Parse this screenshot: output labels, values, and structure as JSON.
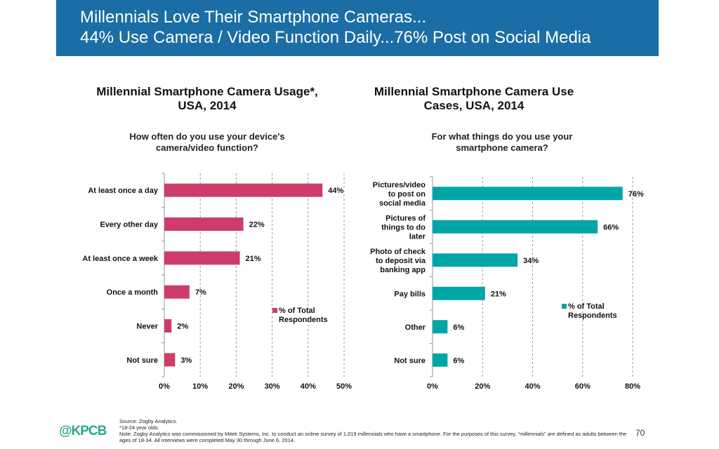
{
  "header": {
    "line1": "Millennials Love Their Smartphone Cameras...",
    "line2": "44% Use Camera / Video Function Daily...76% Post on Social Media"
  },
  "chart_data": [
    {
      "type": "bar",
      "orientation": "horizontal",
      "title": "Millennial Smartphone Camera Usage*, USA, 2014",
      "subtitle": "How often do you use your device's camera/video function?",
      "categories": [
        "At least once a day",
        "Every other day",
        "At least once a week",
        "Once a month",
        "Never",
        "Not sure"
      ],
      "series": [
        {
          "name": "% of Total Respondents",
          "values": [
            44,
            22,
            21,
            7,
            2,
            3
          ]
        }
      ],
      "data_labels": [
        "44%",
        "22%",
        "21%",
        "7%",
        "2%",
        "3%"
      ],
      "xlim": [
        0,
        50
      ],
      "xticks": [
        "0%",
        "10%",
        "20%",
        "30%",
        "40%",
        "50%"
      ],
      "grid": true,
      "legend": "lower-right",
      "color": "#cc3d6a"
    },
    {
      "type": "bar",
      "orientation": "horizontal",
      "title": "Millennial Smartphone Camera Use Cases, USA, 2014",
      "subtitle": "For what things do you use your smartphone camera?",
      "categories": [
        "Pictures/video to post on social media",
        "Pictures of things to do later",
        "Photo of check to deposit via banking app",
        "Pay bills",
        "Other",
        "Not sure"
      ],
      "series": [
        {
          "name": "% of Total Respondents",
          "values": [
            76,
            66,
            34,
            21,
            6,
            6
          ]
        }
      ],
      "data_labels": [
        "76%",
        "66%",
        "34%",
        "21%",
        "6%",
        "6%"
      ],
      "xlim": [
        0,
        80
      ],
      "xticks": [
        "0%",
        "20%",
        "40%",
        "60%",
        "80%"
      ],
      "grid": true,
      "legend": "lower-right",
      "color": "#00a6a6"
    }
  ],
  "footer": {
    "source": "Source: Zogby Analytics.",
    "footnote": "*18-24 year olds.",
    "note": "Note: Zogby Analytics was commissioned by Mitek Systems, Inc. to conduct an online survey of 1,019 millennials who have a smartphone. For the purposes of this survey, “millennials” are defined as adults between the ages of 18-34. All interviews were completed May 30 through June 6, 2014.",
    "logo": "@KPCB",
    "page": "70"
  }
}
